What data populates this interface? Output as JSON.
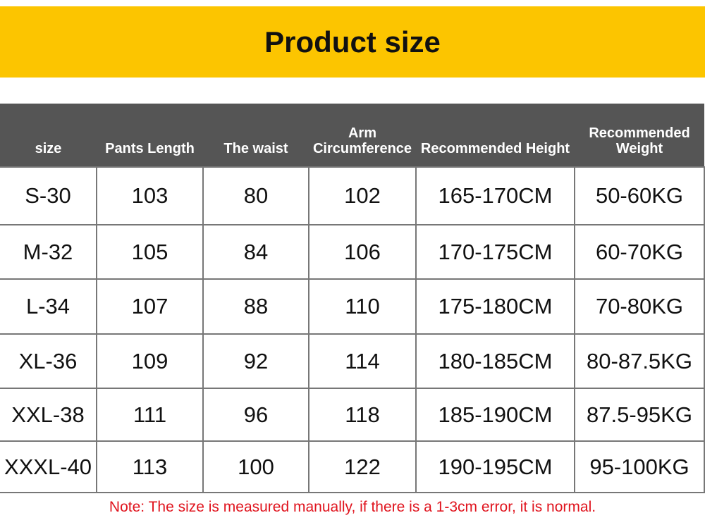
{
  "title": "Product size",
  "columns": [
    "size",
    "Pants Length",
    "The waist",
    "Arm Circumference",
    "Recommended Height",
    "Recommended Weight"
  ],
  "rows": [
    [
      "S-30",
      "103",
      "80",
      "102",
      "165-170CM",
      "50-60KG"
    ],
    [
      "M-32",
      "105",
      "84",
      "106",
      "170-175CM",
      "60-70KG"
    ],
    [
      "L-34",
      "107",
      "88",
      "110",
      "175-180CM",
      "70-80KG"
    ],
    [
      "XL-36",
      "109",
      "92",
      "114",
      "180-185CM",
      "80-87.5KG"
    ],
    [
      "XXL-38",
      "111",
      "96",
      "118",
      "185-190CM",
      "87.5-95KG"
    ],
    [
      "XXXL-40",
      "113",
      "100",
      "122",
      "190-195CM",
      "95-100KG"
    ]
  ],
  "note": "Note: The size is measured manually, if there is a 1-3cm error, it is normal.",
  "colors": {
    "banner": "#FCC500",
    "header": "#555555",
    "note": "#E0141E"
  }
}
